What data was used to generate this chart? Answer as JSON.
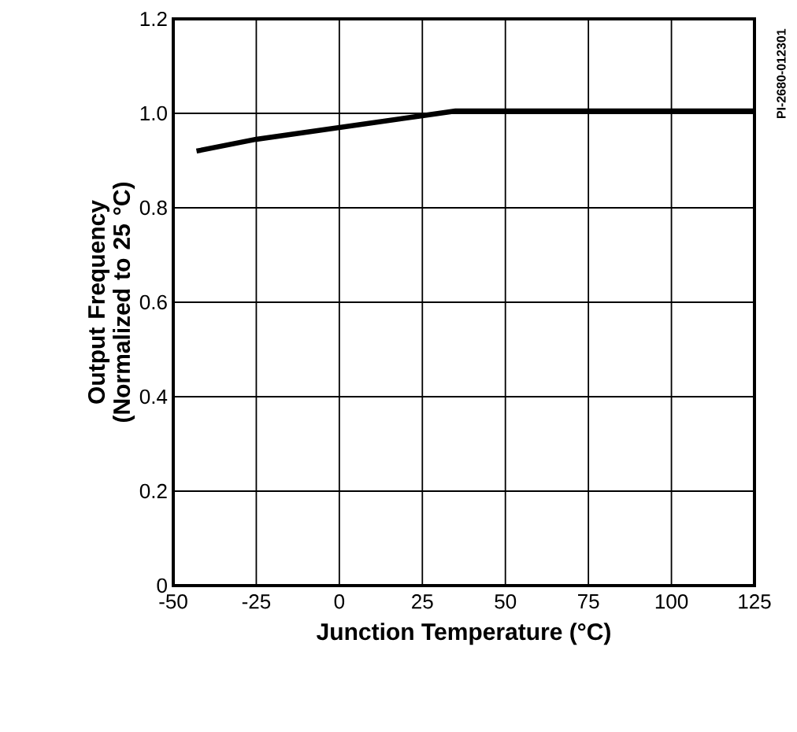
{
  "chart_data": {
    "type": "line",
    "xlabel": "Junction Temperature (°C)",
    "ylabel": "Output Frequency (Normalized to 25 °C)",
    "annotations": [
      "PI-2680-012301"
    ],
    "x": [
      -43,
      -25,
      0,
      25,
      35,
      125
    ],
    "series": [
      {
        "color": "#000000",
        "values": [
          0.92,
          0.945,
          0.97,
          0.995,
          1.005,
          1.005
        ]
      }
    ],
    "xlim": [
      -50,
      125
    ],
    "xticks": [
      -50,
      -25,
      0,
      25,
      50,
      75,
      100,
      125
    ],
    "ylim": [
      0,
      1.2
    ],
    "yticks": [
      {
        "value": 0,
        "label": "0"
      },
      {
        "value": 0.2,
        "label": "0.2"
      },
      {
        "value": 0.4,
        "label": "0.4"
      },
      {
        "value": 0.6,
        "label": "0.6"
      },
      {
        "value": 0.8,
        "label": "0.8"
      },
      {
        "value": 1.0,
        "label": "1.0"
      },
      {
        "value": 1.2,
        "label": "1.2"
      }
    ],
    "grid": true,
    "marker": "none",
    "line_style": "solid"
  }
}
